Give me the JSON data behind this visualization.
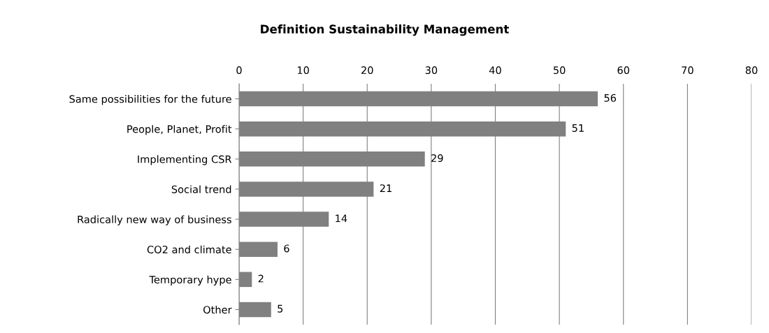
{
  "chart_data": {
    "type": "bar",
    "orientation": "horizontal",
    "title": "Definition Sustainability Management",
    "categories": [
      "Same possibilities for the future",
      "People, Planet, Profit",
      "Implementing CSR",
      "Social trend",
      "Radically new way of business",
      "CO2 and climate",
      "Temporary hype",
      "Other"
    ],
    "values": [
      56,
      51,
      29,
      21,
      14,
      6,
      2,
      5
    ],
    "color": "#808080",
    "xlim": [
      0,
      80
    ],
    "xticks": [
      0,
      10,
      20,
      30,
      40,
      50,
      60,
      70,
      80
    ],
    "grid": "x",
    "data_labels": true
  }
}
